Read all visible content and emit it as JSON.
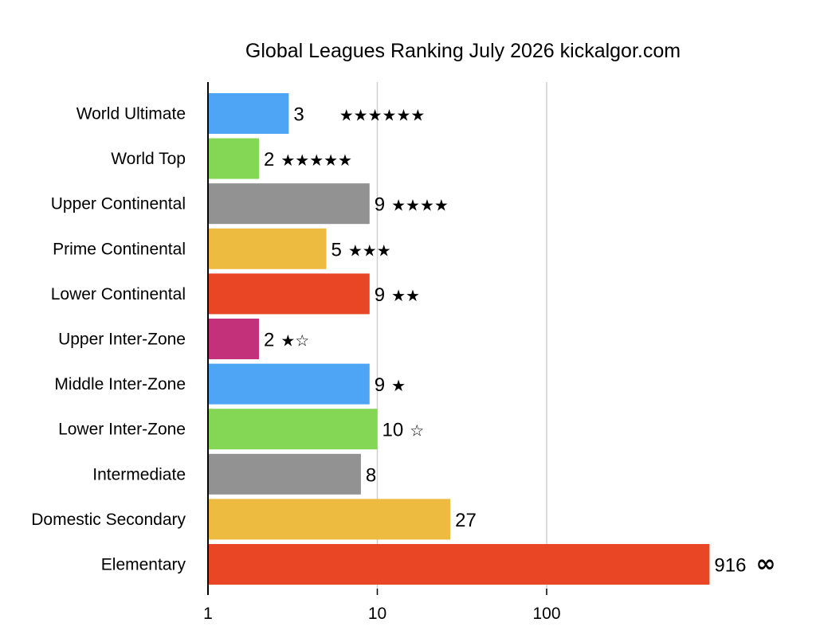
{
  "chart_data": {
    "type": "bar",
    "orientation": "horizontal",
    "title": "Global Leagues Ranking July 2026 kickalgor.com",
    "xlabel": "",
    "ylabel": "",
    "x_scale": "log",
    "xlim": [
      1,
      1000
    ],
    "x_ticks": [
      "1",
      "10",
      "100"
    ],
    "grid": "vertical lines at 10 and 100",
    "legend": "none",
    "categories": [
      "World Ultimate",
      "World Top",
      "Upper Continental",
      "Prime Continental",
      "Lower Continental",
      "Upper Inter-Zone",
      "Middle Inter-Zone",
      "Lower Inter-Zone",
      "Intermediate",
      "Domestic Secondary",
      "Elementary"
    ],
    "values": [
      3,
      2,
      9,
      5,
      9,
      2,
      9,
      10,
      8,
      27,
      916
    ],
    "value_labels": [
      "3",
      "2",
      "9",
      "5",
      "9",
      "2",
      "9",
      "10",
      "8",
      "27",
      "916"
    ],
    "star_labels": [
      "★★★★★★",
      "★★★★★",
      "★★★★",
      "★★★",
      "★★",
      "★☆",
      "★",
      "☆",
      "",
      "",
      "∞"
    ],
    "colors": [
      "#4ea4f5",
      "#84d655",
      "#929292",
      "#ecbb40",
      "#e94626",
      "#c3317a",
      "#4ea4f5",
      "#84d655",
      "#929292",
      "#ecbb40",
      "#e94626"
    ]
  }
}
